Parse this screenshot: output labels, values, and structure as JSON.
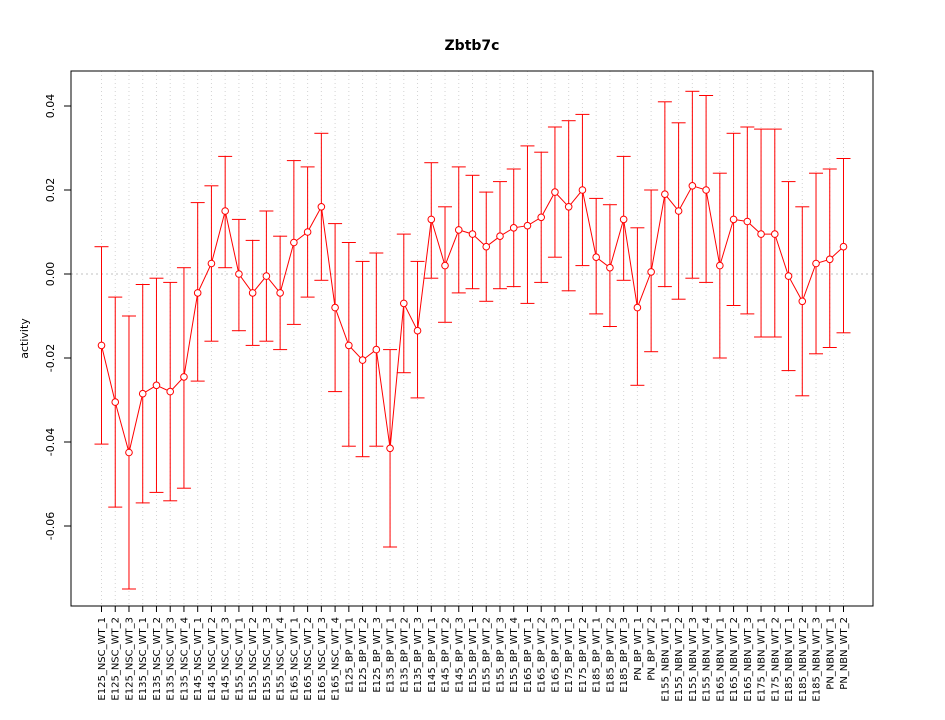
{
  "chart_data": {
    "type": "line",
    "title": "Zbtb7c",
    "xlabel": "",
    "ylabel": "activity",
    "ylim": [
      -0.08,
      0.048
    ],
    "yticks": [
      -0.06,
      -0.04,
      -0.02,
      0.0,
      0.02,
      0.04
    ],
    "ytick_labels": [
      "-0.06",
      "-0.04",
      "-0.02",
      "0.00",
      "0.02",
      "0.04"
    ],
    "grid": true,
    "reference_line_y": 0.0,
    "color": "#ff0000",
    "categories": [
      "E125_NSC_WT_1",
      "E125_NSC_WT_2",
      "E125_NSC_WT_3",
      "E135_NSC_WT_1",
      "E135_NSC_WT_2",
      "E135_NSC_WT_3",
      "E135_NSC_WT_4",
      "E145_NSC_WT_1",
      "E145_NSC_WT_2",
      "E145_NSC_WT_3",
      "E155_NSC_WT_1",
      "E155_NSC_WT_2",
      "E155_NSC_WT_3",
      "E155_NSC_WT_4",
      "E165_NSC_WT_1",
      "E165_NSC_WT_2",
      "E165_NSC_WT_3",
      "E165_NSC_WT_4",
      "E125_BP_WT_1",
      "E125_BP_WT_2",
      "E125_BP_WT_3",
      "E135_BP_WT_1",
      "E135_BP_WT_2",
      "E135_BP_WT_3",
      "E145_BP_WT_1",
      "E145_BP_WT_2",
      "E145_BP_WT_3",
      "E155_BP_WT_1",
      "E155_BP_WT_2",
      "E155_BP_WT_3",
      "E155_BP_WT_4",
      "E165_BP_WT_1",
      "E165_BP_WT_2",
      "E165_BP_WT_3",
      "E175_BP_WT_1",
      "E175_BP_WT_2",
      "E185_BP_WT_1",
      "E185_BP_WT_2",
      "E185_BP_WT_3",
      "PN_BP_WT_1",
      "PN_BP_WT_2",
      "E155_NBN_WT_1",
      "E155_NBN_WT_2",
      "E155_NBN_WT_3",
      "E155_NBN_WT_4",
      "E165_NBN_WT_1",
      "E165_NBN_WT_2",
      "E165_NBN_WT_3",
      "E175_NBN_WT_1",
      "E175_NBN_WT_2",
      "E185_NBN_WT_1",
      "E185_NBN_WT_2",
      "E185_NBN_WT_3",
      "PN_NBN_WT_1",
      "PN_NBN_WT_2"
    ],
    "values": [
      -0.017,
      -0.0305,
      -0.0425,
      -0.0285,
      -0.0265,
      -0.028,
      -0.0245,
      -0.0045,
      0.0025,
      0.015,
      0.0,
      -0.0045,
      -0.0005,
      -0.0045,
      0.0075,
      0.01,
      0.016,
      -0.008,
      -0.017,
      -0.0205,
      -0.018,
      -0.0415,
      -0.007,
      -0.0135,
      0.013,
      0.002,
      0.0105,
      0.0095,
      0.0065,
      0.009,
      0.011,
      0.0115,
      0.0135,
      0.0195,
      0.016,
      0.02,
      0.004,
      0.0015,
      0.013,
      -0.008,
      0.0005,
      0.019,
      0.015,
      0.021,
      0.02,
      0.002,
      0.013,
      0.0125,
      0.0095,
      0.0095,
      -0.0005,
      -0.0065,
      0.0025,
      0.0035,
      0.0065
    ],
    "upper": [
      0.0065,
      -0.0055,
      -0.01,
      -0.0025,
      -0.001,
      -0.002,
      0.0015,
      0.017,
      0.021,
      0.028,
      0.013,
      0.008,
      0.015,
      0.009,
      0.027,
      0.0255,
      0.0335,
      0.012,
      0.0075,
      0.003,
      0.005,
      -0.018,
      0.0095,
      0.003,
      0.0265,
      0.016,
      0.0255,
      0.0235,
      0.0195,
      0.022,
      0.025,
      0.0305,
      0.029,
      0.035,
      0.0365,
      0.038,
      0.018,
      0.0165,
      0.028,
      0.011,
      0.02,
      0.041,
      0.036,
      0.0435,
      0.0425,
      0.024,
      0.0335,
      0.035,
      0.0345,
      0.0345,
      0.022,
      0.016,
      0.024,
      0.025,
      0.0275
    ],
    "lower": [
      -0.0405,
      -0.0555,
      -0.075,
      -0.0545,
      -0.052,
      -0.054,
      -0.051,
      -0.0255,
      -0.016,
      0.0015,
      -0.0135,
      -0.017,
      -0.016,
      -0.018,
      -0.012,
      -0.0055,
      -0.0015,
      -0.028,
      -0.041,
      -0.0435,
      -0.041,
      -0.065,
      -0.0235,
      -0.0295,
      -0.001,
      -0.0115,
      -0.0045,
      -0.0035,
      -0.0065,
      -0.0035,
      -0.003,
      -0.007,
      -0.002,
      0.004,
      -0.004,
      0.002,
      -0.0095,
      -0.0125,
      -0.0015,
      -0.0265,
      -0.0185,
      -0.003,
      -0.006,
      -0.001,
      -0.002,
      -0.02,
      -0.0075,
      -0.0095,
      -0.015,
      -0.015,
      -0.023,
      -0.029,
      -0.019,
      -0.0175,
      -0.014
    ]
  }
}
